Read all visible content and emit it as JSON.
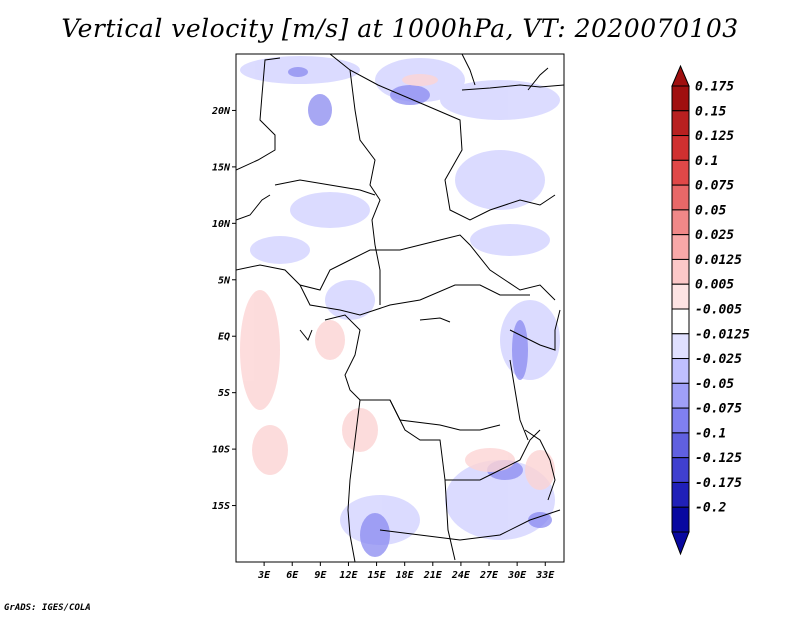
{
  "title": "Vertical velocity [m/s] at 1000hPa, VT: 2020070103",
  "credit": "GrADS: IGES/COLA",
  "map": {
    "lon_range": [
      0,
      35
    ],
    "lat_range": [
      -20,
      25
    ],
    "lat_ticks": [
      {
        "value": 20,
        "label": "20N"
      },
      {
        "value": 15,
        "label": "15N"
      },
      {
        "value": 10,
        "label": "10N"
      },
      {
        "value": 5,
        "label": "5N"
      },
      {
        "value": 0,
        "label": "EQ"
      },
      {
        "value": -5,
        "label": "5S"
      },
      {
        "value": -10,
        "label": "10S"
      },
      {
        "value": -15,
        "label": "15S"
      }
    ],
    "lon_ticks": [
      {
        "value": 3,
        "label": "3E"
      },
      {
        "value": 6,
        "label": "6E"
      },
      {
        "value": 9,
        "label": "9E"
      },
      {
        "value": 12,
        "label": "12E"
      },
      {
        "value": 15,
        "label": "15E"
      },
      {
        "value": 18,
        "label": "18E"
      },
      {
        "value": 21,
        "label": "21E"
      },
      {
        "value": 24,
        "label": "24E"
      },
      {
        "value": 27,
        "label": "27E"
      },
      {
        "value": 30,
        "label": "30E"
      },
      {
        "value": 33,
        "label": "33E"
      }
    ]
  },
  "colorbar": {
    "levels": [
      {
        "label": "0.175",
        "color": "#a01010"
      },
      {
        "label": "0.15",
        "color": "#b82020"
      },
      {
        "label": "0.125",
        "color": "#d03030"
      },
      {
        "label": "0.1",
        "color": "#e04848"
      },
      {
        "label": "0.075",
        "color": "#e86868"
      },
      {
        "label": "0.05",
        "color": "#f08888"
      },
      {
        "label": "0.025",
        "color": "#f8a8a8"
      },
      {
        "label": "0.0125",
        "color": "#fcc8c8"
      },
      {
        "label": "0.005",
        "color": "#fde4e4"
      },
      {
        "label": "-0.005",
        "color": "#ffffff"
      },
      {
        "label": "-0.0125",
        "color": "#e0e0ff"
      },
      {
        "label": "-0.025",
        "color": "#c0c0ff"
      },
      {
        "label": "-0.05",
        "color": "#a0a0f8"
      },
      {
        "label": "-0.075",
        "color": "#8080f0"
      },
      {
        "label": "-0.1",
        "color": "#6060e0"
      },
      {
        "label": "-0.125",
        "color": "#4040d0"
      },
      {
        "label": "-0.175",
        "color": "#2020b8"
      },
      {
        "label": "-0.2",
        "color": "#0808a0"
      }
    ],
    "top_arrow_color": "#a01010",
    "bottom_arrow_color": "#0808a0"
  }
}
